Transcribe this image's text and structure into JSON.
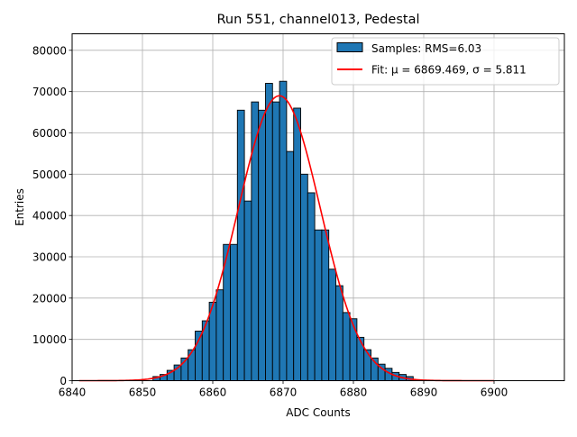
{
  "chart_data": {
    "type": "bar",
    "title": "Run 551, channel013, Pedestal",
    "xlabel": "ADC Counts",
    "ylabel": "Entries",
    "xlim": [
      6840,
      6910
    ],
    "ylim": [
      0,
      84000
    ],
    "xticks": [
      6840,
      6850,
      6860,
      6870,
      6880,
      6890,
      6900
    ],
    "yticks": [
      0,
      10000,
      20000,
      30000,
      40000,
      50000,
      60000,
      70000,
      80000
    ],
    "grid": true,
    "legend_position": "top-right",
    "histogram": {
      "name": "Samples: RMS=6.03",
      "color": "#1f77b4",
      "edge_color": "#000000",
      "bin_centers": [
        6852,
        6853,
        6854,
        6855,
        6856,
        6857,
        6858,
        6859,
        6860,
        6861,
        6862,
        6863,
        6864,
        6865,
        6866,
        6867,
        6868,
        6869,
        6870,
        6871,
        6872,
        6873,
        6874,
        6875,
        6876,
        6877,
        6878,
        6879,
        6880,
        6881,
        6882,
        6883,
        6884,
        6885,
        6886,
        6887,
        6888
      ],
      "counts": [
        1000,
        1500,
        2500,
        3800,
        5500,
        7500,
        12000,
        14500,
        19000,
        22000,
        33000,
        33000,
        65500,
        43500,
        67500,
        65500,
        72000,
        67500,
        72500,
        55500,
        66000,
        50000,
        45500,
        36500,
        36500,
        27000,
        23000,
        16500,
        15000,
        10500,
        7500,
        5500,
        4000,
        3000,
        2000,
        1500,
        1000
      ]
    },
    "fit": {
      "name": "Fit: μ = 6869.469, σ = 5.811",
      "mu_label": "μ = 6869.469",
      "sigma_label": "σ = 5.811",
      "label_prefix": "Fit: ",
      "color": "#ff0000",
      "mu": 6869.469,
      "sigma": 5.811,
      "amplitude": 69000,
      "x_range": [
        6841,
        6900
      ]
    }
  }
}
